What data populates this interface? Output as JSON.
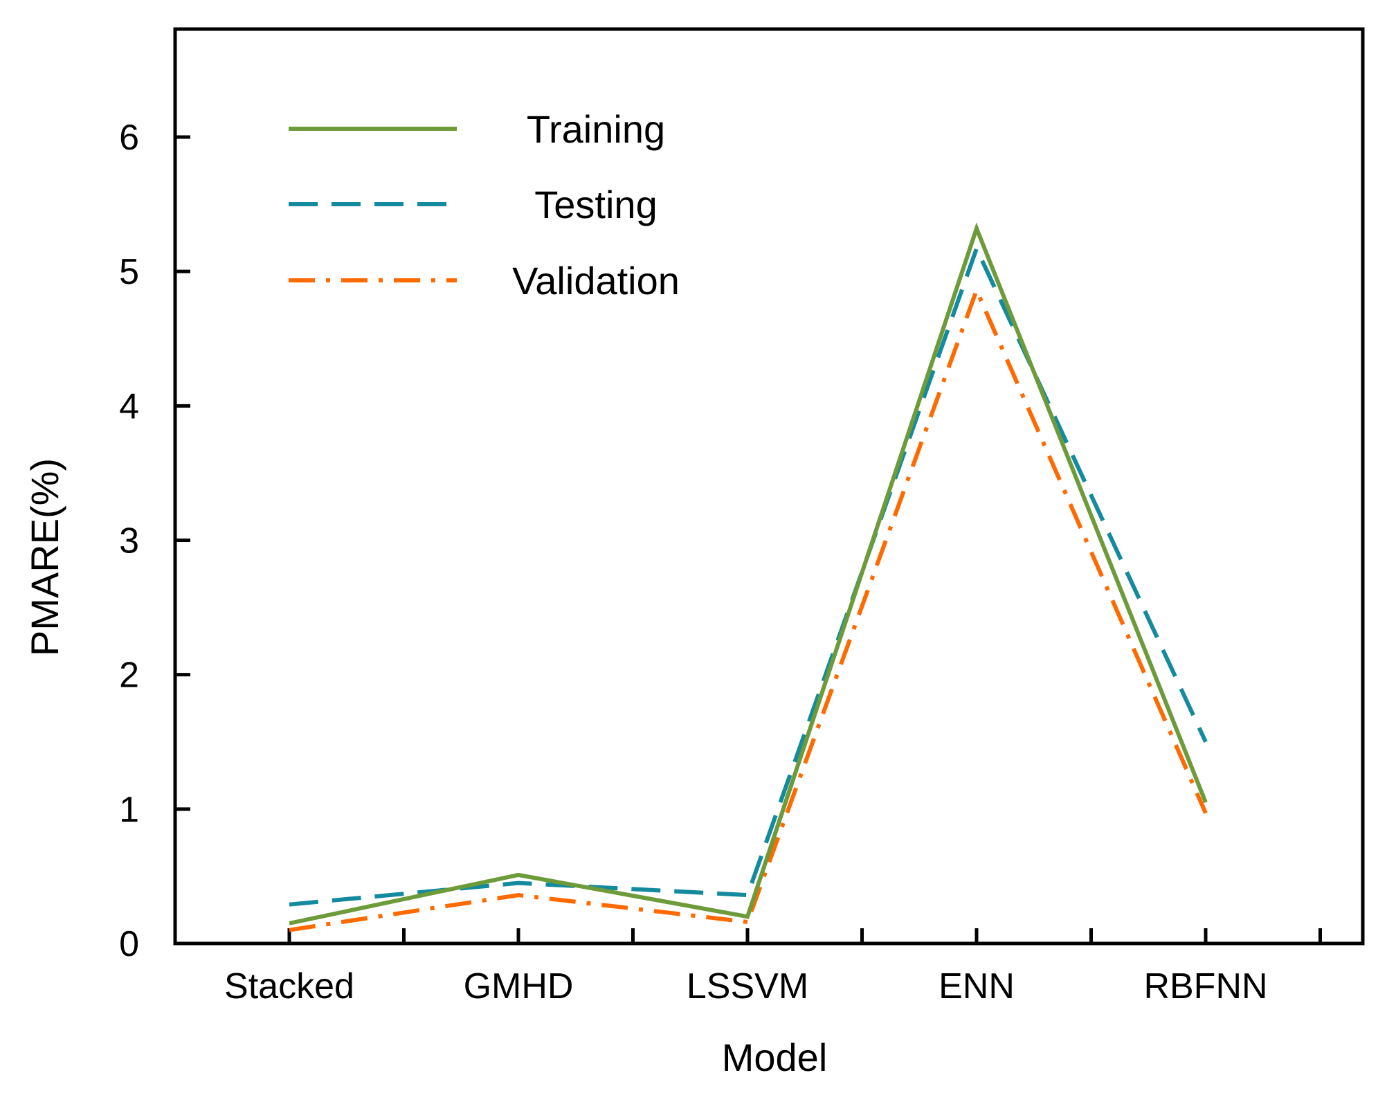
{
  "chart_data": {
    "type": "line",
    "title": "",
    "xlabel": "Model",
    "ylabel": "PMARE(%)",
    "categories": [
      "Stacked",
      "GMHD",
      "LSSVM",
      "ENN",
      "RBFNN"
    ],
    "ylim": [
      0,
      6.8
    ],
    "yticks": [
      0,
      1,
      2,
      3,
      4,
      5,
      6
    ],
    "ytick_labels": [
      "0",
      "1",
      "2",
      "3",
      "4",
      "5",
      "6"
    ],
    "grid": false,
    "legend_position": "top-left",
    "series": [
      {
        "name": "Training",
        "values": [
          0.15,
          0.51,
          0.2,
          5.32,
          1.05
        ],
        "color": "#6E9B3A",
        "style": "solid"
      },
      {
        "name": "Testing",
        "values": [
          0.29,
          0.45,
          0.36,
          5.17,
          1.5
        ],
        "color": "#138A9E",
        "style": "dashed"
      },
      {
        "name": "Validation",
        "values": [
          0.1,
          0.36,
          0.16,
          4.86,
          0.97
        ],
        "color": "#FF6A00",
        "style": "dashdot"
      }
    ]
  }
}
